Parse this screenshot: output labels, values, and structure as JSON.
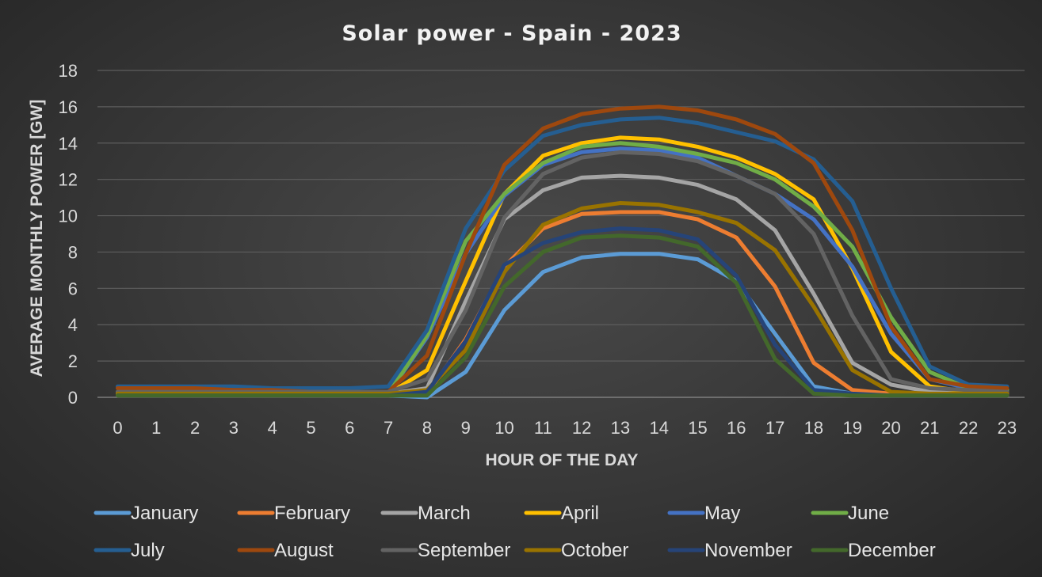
{
  "chart_data": {
    "type": "line",
    "title": "Solar power - Spain - 2023",
    "xlabel": "HOUR OF THE DAY",
    "ylabel": "AVERAGE MONTHLY POWER [GW]",
    "ylim": [
      0,
      18
    ],
    "yticks": [
      0,
      2,
      4,
      6,
      8,
      10,
      12,
      14,
      16,
      18
    ],
    "x": [
      0,
      1,
      2,
      3,
      4,
      5,
      6,
      7,
      8,
      9,
      10,
      11,
      12,
      13,
      14,
      15,
      16,
      17,
      18,
      19,
      20,
      21,
      22,
      23
    ],
    "grid": true,
    "legend_position": "bottom",
    "series": [
      {
        "name": "January",
        "color": "#5b9bd5",
        "values": [
          0.1,
          0.1,
          0.1,
          0.1,
          0.1,
          0.1,
          0.1,
          0.1,
          0.0,
          1.4,
          4.8,
          6.9,
          7.7,
          7.9,
          7.9,
          7.6,
          6.4,
          3.5,
          0.6,
          0.2,
          0.1,
          0.1,
          0.1,
          0.1
        ]
      },
      {
        "name": "February",
        "color": "#ed7d31",
        "values": [
          0.1,
          0.1,
          0.1,
          0.1,
          0.1,
          0.1,
          0.1,
          0.1,
          0.2,
          3.2,
          7.2,
          9.3,
          10.1,
          10.2,
          10.2,
          9.8,
          8.8,
          6.1,
          1.9,
          0.4,
          0.2,
          0.2,
          0.1,
          0.1
        ]
      },
      {
        "name": "March",
        "color": "#a5a5a5",
        "values": [
          0.2,
          0.2,
          0.2,
          0.2,
          0.2,
          0.2,
          0.2,
          0.2,
          0.5,
          5.3,
          9.8,
          11.4,
          12.1,
          12.2,
          12.1,
          11.7,
          10.9,
          9.2,
          5.7,
          1.9,
          0.7,
          0.3,
          0.3,
          0.2
        ]
      },
      {
        "name": "April",
        "color": "#ffc000",
        "values": [
          0.2,
          0.2,
          0.2,
          0.2,
          0.2,
          0.2,
          0.2,
          0.2,
          1.5,
          6.4,
          11.2,
          13.3,
          14.0,
          14.3,
          14.2,
          13.8,
          13.2,
          12.3,
          10.9,
          7.1,
          2.5,
          0.6,
          0.3,
          0.3
        ]
      },
      {
        "name": "May",
        "color": "#4472c4",
        "values": [
          0.3,
          0.3,
          0.3,
          0.3,
          0.3,
          0.2,
          0.2,
          0.2,
          3.3,
          7.9,
          11.1,
          12.8,
          13.5,
          13.7,
          13.6,
          13.2,
          12.2,
          11.2,
          9.8,
          7.2,
          3.5,
          1.0,
          0.5,
          0.4
        ]
      },
      {
        "name": "June",
        "color": "#70ad47",
        "values": [
          0.3,
          0.3,
          0.3,
          0.3,
          0.3,
          0.2,
          0.2,
          0.2,
          3.4,
          8.6,
          11.2,
          12.9,
          13.8,
          14.0,
          13.8,
          13.4,
          12.9,
          12.0,
          10.5,
          8.3,
          4.4,
          1.4,
          0.5,
          0.4
        ]
      },
      {
        "name": "July",
        "color": "#255e91",
        "values": [
          0.6,
          0.6,
          0.6,
          0.6,
          0.5,
          0.5,
          0.5,
          0.6,
          3.7,
          9.3,
          12.5,
          14.4,
          15.0,
          15.3,
          15.4,
          15.1,
          14.6,
          14.1,
          13.1,
          10.8,
          6.0,
          1.7,
          0.7,
          0.6
        ]
      },
      {
        "name": "August",
        "color": "#9e480e",
        "values": [
          0.5,
          0.5,
          0.5,
          0.4,
          0.4,
          0.3,
          0.3,
          0.3,
          2.3,
          7.9,
          12.8,
          14.8,
          15.6,
          15.9,
          16.0,
          15.8,
          15.3,
          14.5,
          12.9,
          9.2,
          3.9,
          1.0,
          0.6,
          0.5
        ]
      },
      {
        "name": "September",
        "color": "#636363",
        "values": [
          0.3,
          0.3,
          0.3,
          0.3,
          0.3,
          0.3,
          0.3,
          0.3,
          1.0,
          4.8,
          9.9,
          12.3,
          13.2,
          13.5,
          13.4,
          13.0,
          12.2,
          11.2,
          9.0,
          4.5,
          1.0,
          0.5,
          0.4,
          0.3
        ]
      },
      {
        "name": "October",
        "color": "#997300",
        "values": [
          0.2,
          0.2,
          0.2,
          0.2,
          0.2,
          0.2,
          0.2,
          0.2,
          0.4,
          2.6,
          6.9,
          9.5,
          10.4,
          10.7,
          10.6,
          10.2,
          9.6,
          8.1,
          5.0,
          1.5,
          0.3,
          0.2,
          0.2,
          0.2
        ]
      },
      {
        "name": "November",
        "color": "#264478",
        "values": [
          0.1,
          0.1,
          0.1,
          0.1,
          0.1,
          0.1,
          0.1,
          0.1,
          0.3,
          3.1,
          7.3,
          8.5,
          9.1,
          9.3,
          9.2,
          8.7,
          6.7,
          2.9,
          0.4,
          0.2,
          0.1,
          0.1,
          0.1,
          0.1
        ]
      },
      {
        "name": "December",
        "color": "#43682b",
        "values": [
          0.1,
          0.1,
          0.1,
          0.1,
          0.1,
          0.1,
          0.1,
          0.1,
          0.1,
          2.2,
          6.1,
          8.0,
          8.8,
          8.9,
          8.8,
          8.3,
          6.3,
          2.1,
          0.2,
          0.1,
          0.1,
          0.1,
          0.1,
          0.1
        ]
      }
    ]
  }
}
